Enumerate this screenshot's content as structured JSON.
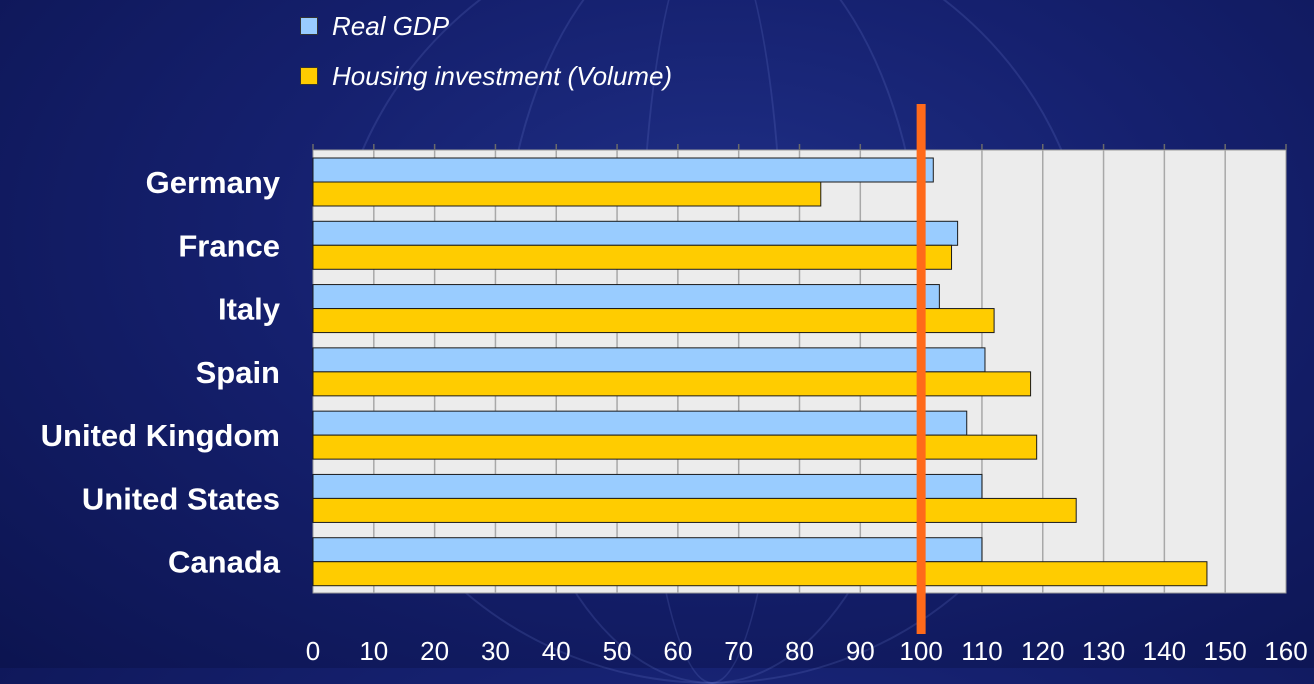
{
  "chart_data": {
    "type": "bar",
    "orientation": "horizontal",
    "categories": [
      "Germany",
      "France",
      "Italy",
      "Spain",
      "United Kingdom",
      "United States",
      "Canada"
    ],
    "series": [
      {
        "name": "Real GDP",
        "color": "#99ccff",
        "values": [
          102,
          106,
          103,
          110.5,
          107.5,
          110,
          110
        ]
      },
      {
        "name": "Housing investment (Volume)",
        "color": "#ffcc00",
        "values": [
          83.5,
          105,
          112,
          118,
          119,
          125.5,
          147
        ]
      }
    ],
    "xlim": [
      0,
      160
    ],
    "xticks": [
      "0",
      "10",
      "20",
      "30",
      "40",
      "50",
      "60",
      "70",
      "80",
      "90",
      "100",
      "110",
      "120",
      "130",
      "140",
      "150",
      "160"
    ],
    "reference_line": {
      "value": 100,
      "color": "#ff6a1a"
    },
    "grid": true,
    "legend_position": "top"
  }
}
